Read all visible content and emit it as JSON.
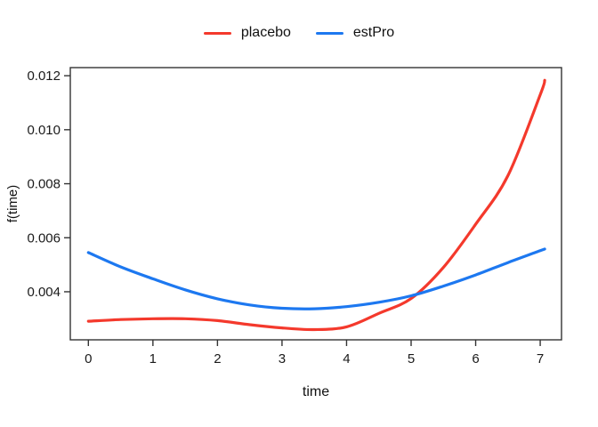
{
  "chart_data": {
    "type": "line",
    "title": "",
    "xlabel": "time",
    "ylabel": "f(time)",
    "x_ticks": [
      0,
      1,
      2,
      3,
      4,
      5,
      6,
      7
    ],
    "x_tick_labels": [
      "0",
      "1",
      "2",
      "3",
      "4",
      "5",
      "6",
      "7"
    ],
    "y_ticks": [
      0.004,
      0.006,
      0.008,
      0.01,
      0.012
    ],
    "y_tick_labels": [
      "0.004",
      "0.006",
      "0.008",
      "0.010",
      "0.012"
    ],
    "xlim": [
      -0.28,
      7.33
    ],
    "ylim": [
      0.00222,
      0.0123
    ],
    "grid": false,
    "legend_position": "top-center",
    "x": [
      0,
      0.5,
      1,
      1.5,
      2,
      2.5,
      3,
      3.5,
      4,
      4.5,
      5,
      5.5,
      6,
      6.5,
      7,
      7.07
    ],
    "series": [
      {
        "name": "placebo",
        "color": "#f4392c",
        "values": [
          0.00291,
          0.00297,
          0.003,
          0.003,
          0.00293,
          0.00278,
          0.00266,
          0.0026,
          0.0027,
          0.0032,
          0.00375,
          0.0049,
          0.0065,
          0.0083,
          0.0113,
          0.01183
        ]
      },
      {
        "name": "estPro",
        "color": "#1d78f0",
        "values": [
          0.00545,
          0.00492,
          0.00448,
          0.00407,
          0.00374,
          0.00351,
          0.00339,
          0.00337,
          0.00345,
          0.00361,
          0.00385,
          0.00421,
          0.00462,
          0.00508,
          0.00552,
          0.00558
        ]
      }
    ]
  },
  "colors": {
    "axis": "#333333",
    "tick_text": "#1a1a1a",
    "background": "#ffffff"
  }
}
